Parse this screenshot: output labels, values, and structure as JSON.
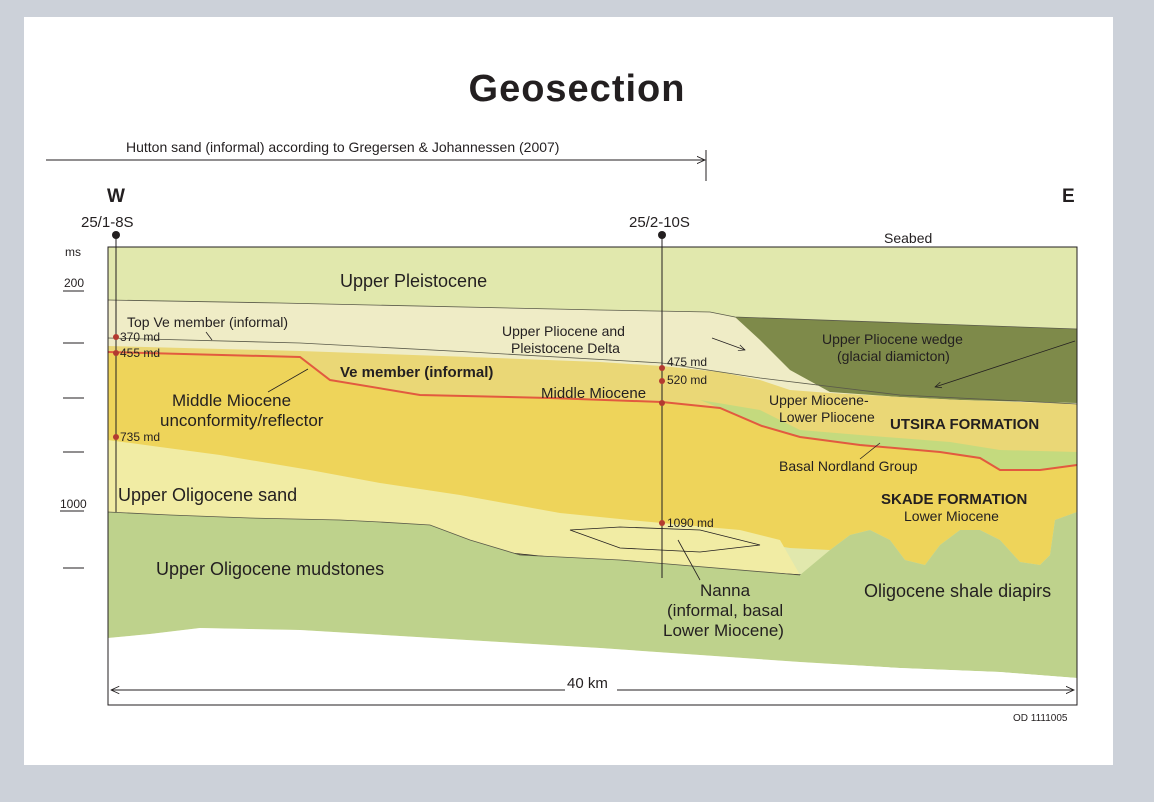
{
  "title": "Geosection",
  "top_note": "Hutton sand (informal) according to Gregersen & Johannessen (2007)",
  "directions": {
    "west": "W",
    "east": "E"
  },
  "wells": {
    "well1": "25/1-8S",
    "well2": "25/2-10S"
  },
  "time_axis": {
    "unit": "ms",
    "tick_200": "200",
    "tick_1000": "1000"
  },
  "seabed_label": "Seabed",
  "units": {
    "upper_pleistocene": "Upper Pleistocene",
    "top_ve": "Top Ve member (informal)",
    "pliocene_delta_1": "Upper Pliocene and",
    "pliocene_delta_2": "Pleistocene Delta",
    "wedge_1": "Upper Pliocene wedge",
    "wedge_2": "(glacial diamicton)",
    "ve_member": "Ve member (informal)",
    "mid_miocene_unc_1": "Middle Miocene",
    "mid_miocene_unc_2": "unconformity/reflector",
    "middle_miocene": "Middle Miocene",
    "upper_miocene_1": "Upper Miocene-",
    "upper_miocene_2": "Lower Pliocene",
    "utsira": "UTSIRA FORMATION",
    "basal_nordland": "Basal Nordland Group",
    "skade": "SKADE FORMATION",
    "lower_miocene": "Lower Miocene",
    "upper_oligocene_sand": "Upper Oligocene sand",
    "upper_oligocene_mud": "Upper Oligocene mudstones",
    "nanna_1": "Nanna",
    "nanna_2": "(informal, basal",
    "nanna_3": "Lower Miocene)",
    "shale_diapirs": "Oligocene shale diapirs"
  },
  "depth_markers": {
    "d370": "370 md",
    "d455": "455 md",
    "d735": "735 md",
    "d475": "475 md",
    "d520": "520 md",
    "d1090": "1090 md"
  },
  "scale_label": "40 km",
  "figure_id": "OD 1111005",
  "colors": {
    "pleistocene": "#e1e8ad",
    "delta": "#efecc6",
    "wedge": "#7e8a4a",
    "upper_miocene": "#ead776",
    "utsira": "#c4da7e",
    "skade": "#eed45a",
    "oligocene_sand": "#f1eca4",
    "mudstone": "#bed28c",
    "unconformity": "#e25a3f",
    "marker": "#b33a30"
  }
}
